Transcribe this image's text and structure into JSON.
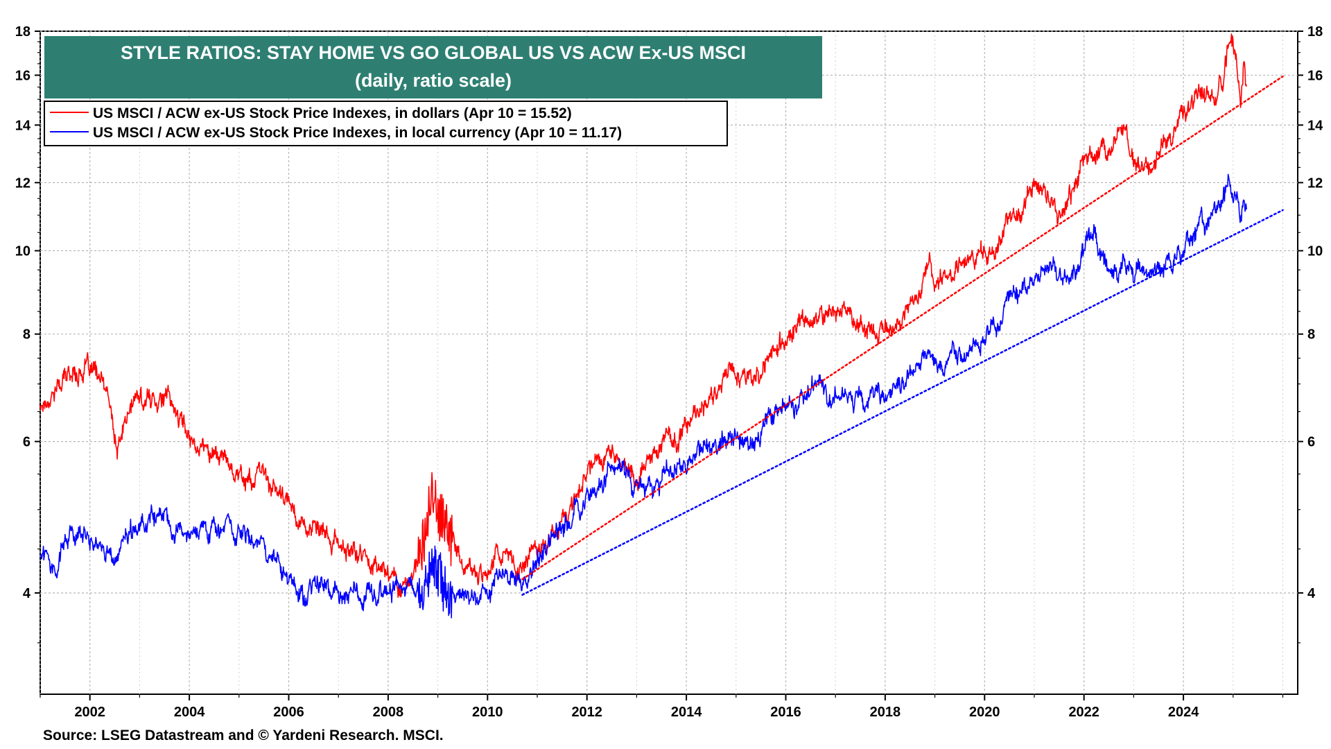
{
  "chart_data": {
    "type": "line",
    "title": "STYLE RATIOS: STAY HOME VS GO GLOBAL US VS ACW Ex-US MSCI",
    "subtitle": "(daily, ratio scale)",
    "source": "Source: LSEG Datastream and © Yardeni Research. MSCI.",
    "y_scale": "log",
    "ylim": [
      3.05,
      18
    ],
    "y_ticks": [
      4,
      6,
      8,
      10,
      12,
      14,
      16,
      18
    ],
    "y_tick_labels": [
      "4",
      "6",
      "8",
      "10",
      "12",
      "14",
      "16",
      "18"
    ],
    "xlim": [
      2001.0,
      2026.3
    ],
    "x_ticks": [
      2002,
      2004,
      2006,
      2008,
      2010,
      2012,
      2014,
      2016,
      2018,
      2020,
      2022,
      2024
    ],
    "x_tick_labels": [
      "2002",
      "2004",
      "2006",
      "2008",
      "2010",
      "2012",
      "2014",
      "2016",
      "2018",
      "2020",
      "2022",
      "2024"
    ],
    "series": [
      {
        "name": "US MSCI / ACW ex-US Stock Price Indexes, in dollars (Apr 10 = 15.52)",
        "color": "#ff0000",
        "x": [
          2001.0,
          2001.3,
          2001.6,
          2001.9,
          2002.2,
          2002.4,
          2002.55,
          2002.7,
          2002.9,
          2003.2,
          2003.4,
          2003.6,
          2003.8,
          2004.0,
          2004.3,
          2004.6,
          2004.9,
          2005.2,
          2005.5,
          2005.8,
          2006.1,
          2006.4,
          2006.7,
          2007.0,
          2007.3,
          2007.6,
          2007.8,
          2008.0,
          2008.2,
          2008.4,
          2008.6,
          2008.8,
          2008.9,
          2009.0,
          2009.2,
          2009.4,
          2009.6,
          2009.8,
          2010.0,
          2010.2,
          2010.4,
          2010.6,
          2010.8,
          2011.0,
          2011.3,
          2011.6,
          2011.9,
          2012.2,
          2012.5,
          2012.8,
          2013.0,
          2013.2,
          2013.5,
          2013.8,
          2014.0,
          2014.3,
          2014.6,
          2014.9,
          2015.1,
          2015.4,
          2015.7,
          2016.0,
          2016.3,
          2016.6,
          2016.9,
          2017.2,
          2017.5,
          2017.8,
          2018.0,
          2018.3,
          2018.6,
          2018.9,
          2019.0,
          2019.3,
          2019.6,
          2019.9,
          2020.0,
          2020.2,
          2020.4,
          2020.7,
          2021.0,
          2021.3,
          2021.6,
          2021.9,
          2022.0,
          2022.2,
          2022.4,
          2022.6,
          2022.8,
          2023.0,
          2023.2,
          2023.5,
          2023.8,
          2024.0,
          2024.3,
          2024.6,
          2024.8,
          2024.95,
          2025.05,
          2025.15,
          2025.22,
          2025.27
        ],
        "values": [
          6.6,
          6.9,
          7.2,
          7.3,
          7.1,
          6.6,
          5.8,
          6.3,
          6.7,
          6.7,
          6.8,
          6.7,
          6.4,
          6.1,
          5.9,
          5.8,
          5.6,
          5.4,
          5.5,
          5.2,
          5.0,
          4.75,
          4.65,
          4.55,
          4.45,
          4.4,
          4.3,
          4.25,
          4.1,
          4.15,
          4.3,
          4.8,
          5.2,
          4.9,
          4.6,
          4.45,
          4.25,
          4.2,
          4.3,
          4.5,
          4.35,
          4.25,
          4.4,
          4.55,
          4.7,
          4.9,
          5.4,
          5.8,
          5.8,
          5.6,
          5.4,
          5.7,
          6.0,
          6.0,
          6.3,
          6.5,
          6.9,
          7.4,
          7.3,
          7.0,
          7.6,
          7.9,
          8.1,
          8.3,
          8.5,
          8.6,
          8.3,
          8.0,
          8.2,
          8.3,
          8.8,
          9.6,
          9.2,
          9.5,
          9.7,
          10.0,
          10.1,
          9.9,
          10.7,
          11.3,
          11.8,
          11.5,
          11.2,
          12.3,
          12.8,
          13.0,
          13.1,
          13.3,
          13.6,
          12.7,
          12.2,
          12.8,
          13.9,
          14.4,
          14.9,
          15.1,
          15.8,
          17.6,
          16.8,
          14.9,
          16.9,
          15.52
        ]
      },
      {
        "name": "US MSCI / ACW ex-US Stock Price Indexes, in local currency (Apr 10 = 11.17)",
        "color": "#0000ff",
        "x": [
          2001.0,
          2001.3,
          2001.6,
          2001.9,
          2002.2,
          2002.4,
          2002.55,
          2002.7,
          2002.9,
          2003.2,
          2003.4,
          2003.6,
          2003.8,
          2004.0,
          2004.3,
          2004.6,
          2004.9,
          2005.2,
          2005.5,
          2005.8,
          2006.0,
          2006.3,
          2006.5,
          2006.8,
          2007.1,
          2007.4,
          2007.7,
          2008.0,
          2008.3,
          2008.6,
          2008.8,
          2008.95,
          2009.1,
          2009.3,
          2009.5,
          2009.7,
          2010.0,
          2010.3,
          2010.5,
          2010.7,
          2010.9,
          2011.2,
          2011.5,
          2011.8,
          2012.1,
          2012.4,
          2012.7,
          2012.9,
          2013.1,
          2013.3,
          2013.6,
          2013.9,
          2014.2,
          2014.5,
          2014.8,
          2015.0,
          2015.2,
          2015.4,
          2015.7,
          2016.0,
          2016.3,
          2016.6,
          2016.9,
          2017.2,
          2017.5,
          2017.8,
          2018.0,
          2018.3,
          2018.6,
          2018.9,
          2019.1,
          2019.4,
          2019.7,
          2020.0,
          2020.2,
          2020.4,
          2020.7,
          2021.0,
          2021.3,
          2021.6,
          2021.9,
          2022.0,
          2022.2,
          2022.4,
          2022.6,
          2022.8,
          2023.0,
          2023.3,
          2023.6,
          2023.9,
          2024.2,
          2024.5,
          2024.7,
          2024.9,
          2025.05,
          2025.15,
          2025.22,
          2025.27
        ],
        "values": [
          4.45,
          4.35,
          4.75,
          4.65,
          4.55,
          4.45,
          4.35,
          4.55,
          4.7,
          4.85,
          5.0,
          4.75,
          4.8,
          4.8,
          4.85,
          4.75,
          4.75,
          4.6,
          4.5,
          4.4,
          4.1,
          3.95,
          4.1,
          4.05,
          4.0,
          3.95,
          4.05,
          4.0,
          4.1,
          4.05,
          4.2,
          4.3,
          4.1,
          4.0,
          3.95,
          3.95,
          4.0,
          4.15,
          4.2,
          4.15,
          4.3,
          4.55,
          4.75,
          5.0,
          5.3,
          5.5,
          5.55,
          5.4,
          5.25,
          5.35,
          5.6,
          5.6,
          5.8,
          5.85,
          6.1,
          6.05,
          5.8,
          6.1,
          6.5,
          6.6,
          6.7,
          7.0,
          6.8,
          6.75,
          6.8,
          6.75,
          6.8,
          7.0,
          7.3,
          7.6,
          7.3,
          7.5,
          7.7,
          7.9,
          8.1,
          8.6,
          8.8,
          9.5,
          9.6,
          9.2,
          9.5,
          10.0,
          10.5,
          10.0,
          9.6,
          9.7,
          9.4,
          9.3,
          9.6,
          10.0,
          10.4,
          10.8,
          11.1,
          12.0,
          11.6,
          10.8,
          11.7,
          11.17
        ]
      },
      {
        "name": "red trend line",
        "color": "#ff0000",
        "style": "dotted",
        "x": [
          2010.7,
          2026.0
        ],
        "values": [
          4.15,
          15.95
        ]
      },
      {
        "name": "blue trend line",
        "color": "#0000ff",
        "style": "dotted",
        "x": [
          2010.7,
          2026.0
        ],
        "values": [
          3.98,
          11.15
        ]
      }
    ],
    "legend": {
      "placement": "top-left",
      "entries": [
        "US MSCI / ACW ex-US Stock Price Indexes, in dollars (Apr 10 = 15.52)",
        "US MSCI / ACW ex-US Stock Price Indexes, in local currency (Apr 10 = 11.17)"
      ]
    },
    "grid": true,
    "title_box_color": "#2e7f72"
  }
}
